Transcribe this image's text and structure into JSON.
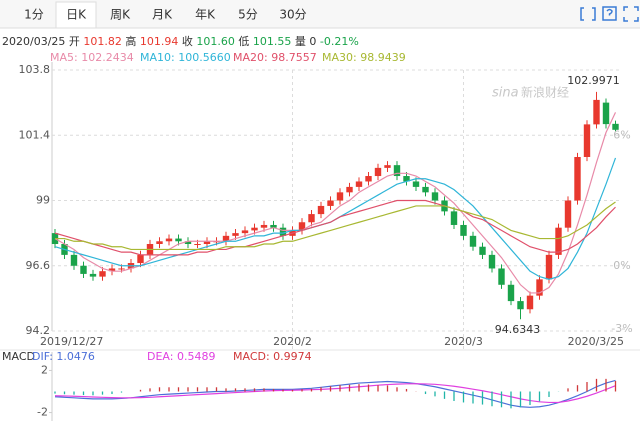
{
  "toolbar": {
    "tabs": [
      "1分",
      "日K",
      "周K",
      "月K",
      "年K",
      "5分",
      "30分"
    ],
    "active": 1
  },
  "quote": {
    "date": "2020/03/25",
    "items": [
      [
        "开",
        "101.82"
      ],
      [
        "高",
        "101.94"
      ],
      [
        "收",
        "101.60"
      ],
      [
        "低",
        "101.55"
      ],
      [
        "量",
        "0"
      ]
    ],
    "change": "-0.21%"
  },
  "watermark": {
    "logo": "sina",
    "text": "新浪财经"
  },
  "chart_data": [
    {
      "type": "candlestick",
      "categories": [
        "2019/12/27",
        null,
        null,
        null,
        null,
        null,
        null,
        null,
        null,
        null,
        null,
        null,
        null,
        null,
        null,
        null,
        null,
        null,
        null,
        null,
        null,
        null,
        null,
        null,
        null,
        "2020/2",
        null,
        null,
        null,
        null,
        null,
        null,
        null,
        null,
        null,
        null,
        null,
        null,
        null,
        null,
        null,
        null,
        null,
        "2020/3",
        null,
        null,
        null,
        null,
        null,
        null,
        null,
        null,
        null,
        null,
        null,
        null,
        null,
        null,
        null,
        "2020/3/25"
      ],
      "open": [
        97.8,
        97.4,
        97.0,
        96.6,
        96.3,
        96.2,
        96.4,
        96.5,
        96.5,
        96.7,
        97.0,
        97.4,
        97.5,
        97.6,
        97.5,
        97.4,
        97.4,
        97.5,
        97.5,
        97.7,
        97.8,
        97.9,
        98.0,
        98.1,
        98.0,
        97.7,
        97.9,
        98.2,
        98.5,
        98.8,
        99.0,
        99.3,
        99.5,
        99.7,
        99.9,
        100.2,
        100.3,
        99.9,
        99.7,
        99.5,
        99.3,
        99.0,
        98.6,
        98.1,
        97.7,
        97.3,
        97.0,
        96.5,
        95.9,
        95.3,
        95.0,
        95.5,
        96.1,
        97.0,
        98.0,
        99.0,
        100.6,
        101.8,
        102.6,
        101.82
      ],
      "high": [
        97.95,
        97.55,
        97.15,
        96.75,
        96.45,
        96.55,
        96.65,
        96.65,
        96.85,
        97.15,
        97.55,
        97.65,
        97.75,
        97.75,
        97.65,
        97.55,
        97.65,
        97.65,
        97.85,
        97.95,
        98.05,
        98.15,
        98.25,
        98.25,
        98.15,
        98.05,
        98.35,
        98.65,
        98.95,
        99.15,
        99.45,
        99.65,
        99.85,
        100.05,
        100.35,
        100.45,
        100.45,
        100.05,
        99.85,
        99.65,
        99.45,
        99.15,
        98.75,
        98.25,
        97.85,
        97.45,
        97.15,
        96.65,
        96.05,
        95.45,
        95.65,
        96.25,
        97.15,
        98.15,
        99.15,
        100.75,
        101.95,
        102.9971,
        102.75,
        101.94
      ],
      "low": [
        97.25,
        96.85,
        96.45,
        96.15,
        96.05,
        96.05,
        96.25,
        96.35,
        96.35,
        96.55,
        96.85,
        97.25,
        97.35,
        97.35,
        97.25,
        97.25,
        97.25,
        97.35,
        97.35,
        97.55,
        97.65,
        97.75,
        97.85,
        97.85,
        97.55,
        97.55,
        97.75,
        98.05,
        98.35,
        98.65,
        98.85,
        99.15,
        99.35,
        99.55,
        99.75,
        100.05,
        99.75,
        99.55,
        99.35,
        99.15,
        98.85,
        98.45,
        97.95,
        97.55,
        97.15,
        96.85,
        96.35,
        95.75,
        95.15,
        94.6343,
        94.85,
        95.35,
        95.95,
        96.85,
        97.85,
        98.85,
        100.45,
        101.65,
        101.65,
        101.55
      ],
      "close": [
        97.4,
        97.0,
        96.6,
        96.3,
        96.2,
        96.4,
        96.5,
        96.5,
        96.7,
        97.0,
        97.4,
        97.5,
        97.6,
        97.5,
        97.4,
        97.4,
        97.5,
        97.5,
        97.7,
        97.8,
        97.9,
        98.0,
        98.1,
        98.0,
        97.7,
        97.9,
        98.2,
        98.5,
        98.8,
        99.0,
        99.3,
        99.5,
        99.7,
        99.9,
        100.2,
        100.3,
        99.9,
        99.7,
        99.5,
        99.3,
        99.0,
        98.6,
        98.1,
        97.7,
        97.3,
        97.0,
        96.5,
        95.9,
        95.3,
        95.0,
        95.5,
        96.1,
        97.0,
        98.0,
        99.0,
        100.6,
        101.8,
        102.7,
        101.81,
        101.6
      ],
      "up_color": "#e8382e",
      "down_color": "#1aa34a",
      "ylim": [
        94.2,
        103.8
      ],
      "yticks": [
        94.2,
        96.6,
        99,
        101.4,
        103.8
      ],
      "y2lim": [
        -3,
        9
      ],
      "y2ticks": [
        {
          "value": 6,
          "label": "6%"
        },
        {
          "value": 0,
          "label": "0%"
        },
        {
          "value": -3,
          "label": "-3%"
        }
      ],
      "grid": true,
      "annotations": [
        {
          "path": "high",
          "index": 57
        },
        {
          "path": "low",
          "index": 49
        }
      ],
      "series": [
        {
          "name": "MA5: 102.2434",
          "color": "#e88aa8",
          "values": [
            97.6,
            97.4,
            97.2,
            96.9,
            96.7,
            96.5,
            96.4,
            96.4,
            96.5,
            96.6,
            96.8,
            97.0,
            97.2,
            97.4,
            97.5,
            97.5,
            97.5,
            97.5,
            97.5,
            97.6,
            97.7,
            97.8,
            97.9,
            98.0,
            97.9,
            97.9,
            97.9,
            98.1,
            98.2,
            98.5,
            98.8,
            99.0,
            99.3,
            99.5,
            99.7,
            99.9,
            100.0,
            100.0,
            99.9,
            99.7,
            99.5,
            99.2,
            98.9,
            98.5,
            98.1,
            97.7,
            97.3,
            96.9,
            96.4,
            95.9,
            95.6,
            95.6,
            95.8,
            96.3,
            97.1,
            98.1,
            99.2,
            100.4,
            101.5,
            102.2434
          ]
        },
        {
          "name": "MA10: 100.5660",
          "color": "#2fb5d8",
          "values": [
            97.3,
            97.2,
            97.1,
            97.0,
            96.9,
            96.8,
            96.7,
            96.6,
            96.6,
            96.6,
            96.7,
            96.8,
            96.9,
            97.0,
            97.1,
            97.2,
            97.3,
            97.4,
            97.5,
            97.5,
            97.6,
            97.7,
            97.7,
            97.8,
            97.8,
            97.9,
            97.9,
            98.0,
            98.1,
            98.2,
            98.4,
            98.6,
            98.8,
            99.0,
            99.2,
            99.4,
            99.6,
            99.7,
            99.8,
            99.8,
            99.7,
            99.6,
            99.4,
            99.1,
            98.8,
            98.4,
            98.0,
            97.6,
            97.2,
            96.8,
            96.4,
            96.2,
            96.1,
            96.2,
            96.5,
            97.1,
            97.8,
            98.7,
            99.6,
            100.566
          ]
        },
        {
          "name": "MA20: 98.7557",
          "color": "#e0506a",
          "values": [
            97.8,
            97.7,
            97.6,
            97.5,
            97.4,
            97.3,
            97.2,
            97.1,
            97.1,
            97.0,
            97.0,
            97.0,
            97.0,
            97.0,
            97.0,
            97.1,
            97.1,
            97.2,
            97.2,
            97.3,
            97.3,
            97.4,
            97.5,
            97.6,
            97.7,
            97.8,
            97.9,
            98.0,
            98.1,
            98.2,
            98.4,
            98.5,
            98.6,
            98.7,
            98.8,
            98.9,
            99.0,
            99.0,
            99.0,
            99.0,
            98.9,
            98.8,
            98.7,
            98.6,
            98.4,
            98.3,
            98.1,
            97.9,
            97.7,
            97.5,
            97.3,
            97.2,
            97.1,
            97.1,
            97.2,
            97.4,
            97.7,
            98.0,
            98.4,
            98.7557
          ]
        },
        {
          "name": "MA30: 98.9439",
          "color": "#a8b832",
          "values": [
            97.6,
            97.6,
            97.5,
            97.5,
            97.4,
            97.4,
            97.3,
            97.3,
            97.2,
            97.2,
            97.2,
            97.2,
            97.2,
            97.2,
            97.2,
            97.2,
            97.2,
            97.2,
            97.3,
            97.3,
            97.3,
            97.3,
            97.4,
            97.4,
            97.5,
            97.5,
            97.6,
            97.7,
            97.8,
            97.9,
            98.0,
            98.1,
            98.2,
            98.3,
            98.4,
            98.5,
            98.6,
            98.7,
            98.8,
            98.8,
            98.8,
            98.8,
            98.7,
            98.6,
            98.5,
            98.4,
            98.3,
            98.1,
            97.9,
            97.8,
            97.7,
            97.6,
            97.6,
            97.6,
            97.7,
            97.9,
            98.1,
            98.4,
            98.7,
            98.9439
          ]
        }
      ]
    },
    {
      "type": "macd",
      "title": "MACD",
      "ylim": [
        -2.8,
        2.8
      ],
      "yticks": [
        2,
        -2
      ],
      "series": [
        {
          "name": "DIF: 1.0476",
          "type": "line",
          "color": "#4b6fd8",
          "values": [
            -0.5,
            -0.55,
            -0.6,
            -0.65,
            -0.7,
            -0.7,
            -0.7,
            -0.65,
            -0.6,
            -0.5,
            -0.4,
            -0.3,
            -0.25,
            -0.2,
            -0.15,
            -0.1,
            -0.05,
            0,
            0,
            0.05,
            0.1,
            0.15,
            0.2,
            0.2,
            0.2,
            0.2,
            0.25,
            0.3,
            0.4,
            0.5,
            0.6,
            0.7,
            0.8,
            0.85,
            0.9,
            0.95,
            0.9,
            0.85,
            0.75,
            0.6,
            0.45,
            0.25,
            0.05,
            -0.15,
            -0.35,
            -0.55,
            -0.8,
            -1.05,
            -1.3,
            -1.45,
            -1.5,
            -1.45,
            -1.3,
            -1.05,
            -0.75,
            -0.4,
            0,
            0.45,
            0.8,
            1.0476
          ]
        },
        {
          "name": "DEA: 0.5489",
          "type": "line",
          "color": "#e040e0",
          "values": [
            -0.4,
            -0.42,
            -0.45,
            -0.48,
            -0.52,
            -0.55,
            -0.58,
            -0.6,
            -0.6,
            -0.58,
            -0.55,
            -0.5,
            -0.45,
            -0.4,
            -0.35,
            -0.3,
            -0.25,
            -0.2,
            -0.15,
            -0.1,
            -0.05,
            0,
            0.05,
            0.08,
            0.1,
            0.12,
            0.14,
            0.17,
            0.2,
            0.25,
            0.3,
            0.38,
            0.45,
            0.52,
            0.6,
            0.66,
            0.7,
            0.73,
            0.74,
            0.72,
            0.68,
            0.6,
            0.5,
            0.37,
            0.22,
            0.07,
            -0.1,
            -0.3,
            -0.5,
            -0.7,
            -0.86,
            -0.98,
            -1.04,
            -1.04,
            -0.9,
            -0.7,
            -0.45,
            -0.15,
            0.2,
            0.5489
          ]
        },
        {
          "name": "MACD: 0.9974",
          "type": "bar",
          "color": "#d0383a",
          "negative_color": "#1fb5a8",
          "values": [
            -0.2,
            -0.26,
            -0.3,
            -0.34,
            -0.36,
            -0.3,
            -0.24,
            -0.1,
            0,
            0.16,
            0.3,
            0.4,
            0.4,
            0.4,
            0.4,
            0.4,
            0.4,
            0.4,
            0.3,
            0.3,
            0.3,
            0.3,
            0.3,
            0.24,
            0.2,
            0.16,
            0.22,
            0.26,
            0.4,
            0.5,
            0.6,
            0.64,
            0.7,
            0.66,
            0.6,
            0.58,
            0.4,
            0.24,
            0.02,
            -0.24,
            -0.46,
            -0.7,
            -0.9,
            -1.04,
            -1.14,
            -1.24,
            -1.4,
            -1.5,
            -1.6,
            -1.5,
            -1.28,
            -0.94,
            -0.52,
            -0.02,
            0.3,
            0.6,
            0.9,
            1.2,
            1.2,
            0.9974
          ]
        }
      ]
    }
  ]
}
